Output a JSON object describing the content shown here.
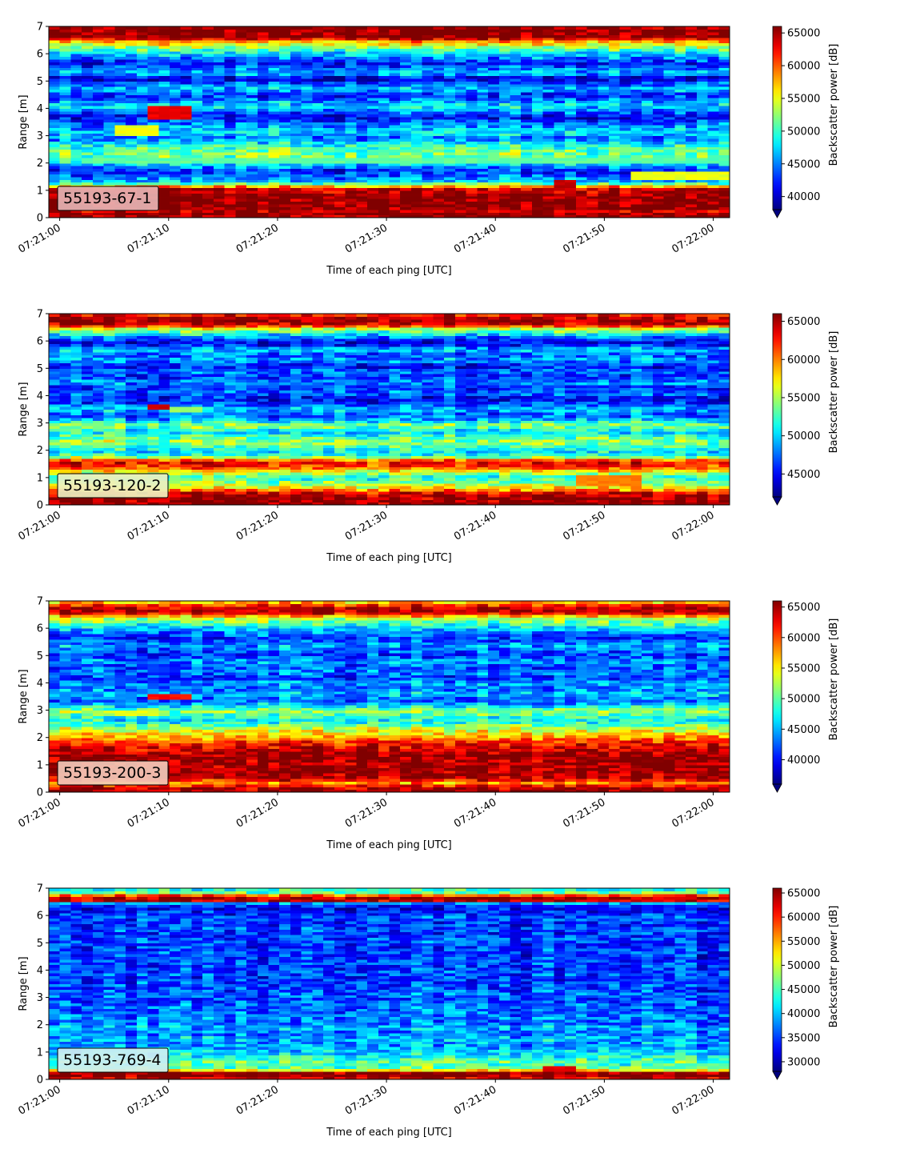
{
  "chart_data": [
    {
      "type": "heatmap",
      "label": "55193-67-1",
      "label_bg": "#e6b3b3",
      "xlabel": "Time of each ping [UTC]",
      "ylabel": "Range [m]",
      "colorbar_label": "Backscatter power [dB]",
      "x_ticks": [
        "07:21:00",
        "07:21:10",
        "07:21:20",
        "07:21:30",
        "07:21:40",
        "07:21:50",
        "07:22:00"
      ],
      "xlim_seconds": [
        -1,
        61.5
      ],
      "y_ticks": [
        0,
        1,
        2,
        3,
        4,
        5,
        6,
        7
      ],
      "ylim": [
        0,
        7
      ],
      "clim": [
        38000,
        66000
      ],
      "colorbar_ticks": [
        40000,
        45000,
        50000,
        55000,
        60000,
        65000
      ],
      "colorbar_extend": "min",
      "colormap": "jet",
      "range_profile": [
        [
          0.0,
          66000
        ],
        [
          0.2,
          66000
        ],
        [
          0.25,
          64000
        ],
        [
          0.4,
          66000
        ],
        [
          0.8,
          66000
        ],
        [
          1.05,
          64000
        ],
        [
          1.15,
          58000
        ],
        [
          1.3,
          47000
        ],
        [
          1.5,
          45000
        ],
        [
          1.7,
          42000
        ],
        [
          1.9,
          46000
        ],
        [
          2.1,
          50000
        ],
        [
          2.3,
          52000
        ],
        [
          2.5,
          51000
        ],
        [
          2.7,
          49000
        ],
        [
          2.9,
          44000
        ],
        [
          3.1,
          48000
        ],
        [
          3.3,
          46000
        ],
        [
          3.5,
          44000
        ],
        [
          3.7,
          41000
        ],
        [
          3.9,
          45000
        ],
        [
          4.1,
          48000
        ],
        [
          4.3,
          45000
        ],
        [
          4.5,
          42000
        ],
        [
          4.7,
          47000
        ],
        [
          4.9,
          44000
        ],
        [
          5.1,
          40000
        ],
        [
          5.3,
          47000
        ],
        [
          5.5,
          44000
        ],
        [
          5.7,
          42000
        ],
        [
          5.9,
          46000
        ],
        [
          6.1,
          49000
        ],
        [
          6.25,
          53000
        ],
        [
          6.45,
          58000
        ],
        [
          6.55,
          63000
        ],
        [
          6.65,
          66000
        ],
        [
          7.0,
          66000
        ]
      ],
      "features": [
        {
          "t0": 8.5,
          "t1": 12.5,
          "r0": 3.65,
          "r1": 4.1,
          "v": 63000
        },
        {
          "t0": 5.5,
          "t1": 9,
          "r0": 3.0,
          "r1": 3.35,
          "v": 55000
        },
        {
          "t0": 45.5,
          "t1": 47.5,
          "r0": 1.0,
          "r1": 1.45,
          "v": 64000
        },
        {
          "t0": 52,
          "t1": 61.5,
          "r0": 1.4,
          "r1": 1.7,
          "v": 55000
        },
        {
          "t0": 2,
          "t1": 61.5,
          "r0": 2.0,
          "r1": 2.2,
          "v": 51000
        }
      ]
    },
    {
      "type": "heatmap",
      "label": "55193-120-2",
      "label_bg": "#eef0c0",
      "xlabel": "Time of each ping [UTC]",
      "ylabel": "Range [m]",
      "colorbar_label": "Backscatter power [dB]",
      "x_ticks": [
        "07:21:00",
        "07:21:10",
        "07:21:20",
        "07:21:30",
        "07:21:40",
        "07:21:50",
        "07:22:00"
      ],
      "xlim_seconds": [
        -1,
        61.5
      ],
      "y_ticks": [
        0,
        1,
        2,
        3,
        4,
        5,
        6,
        7
      ],
      "ylim": [
        0,
        7
      ],
      "clim": [
        42000,
        66000
      ],
      "colorbar_ticks": [
        45000,
        50000,
        55000,
        60000,
        65000
      ],
      "colorbar_extend": "min",
      "colormap": "jet",
      "range_profile": [
        [
          0.0,
          66000
        ],
        [
          0.15,
          66000
        ],
        [
          0.45,
          64000
        ],
        [
          0.6,
          58000
        ],
        [
          0.8,
          55000
        ],
        [
          1.0,
          52000
        ],
        [
          1.2,
          56000
        ],
        [
          1.4,
          62000
        ],
        [
          1.6,
          63000
        ],
        [
          1.75,
          55000
        ],
        [
          1.9,
          50000
        ],
        [
          2.1,
          52000
        ],
        [
          2.3,
          55000
        ],
        [
          2.5,
          53000
        ],
        [
          2.7,
          50000
        ],
        [
          2.9,
          55000
        ],
        [
          3.1,
          50000
        ],
        [
          3.3,
          47000
        ],
        [
          3.5,
          50000
        ],
        [
          3.7,
          47000
        ],
        [
          3.9,
          45000
        ],
        [
          4.1,
          48000
        ],
        [
          4.3,
          46000
        ],
        [
          4.5,
          49000
        ],
        [
          4.7,
          46000
        ],
        [
          4.9,
          48000
        ],
        [
          5.1,
          45000
        ],
        [
          5.3,
          49000
        ],
        [
          5.5,
          47000
        ],
        [
          5.7,
          50000
        ],
        [
          5.9,
          44000
        ],
        [
          6.1,
          47000
        ],
        [
          6.3,
          52000
        ],
        [
          6.45,
          56000
        ],
        [
          6.6,
          64000
        ],
        [
          6.8,
          66000
        ],
        [
          7.0,
          62000
        ]
      ],
      "features": [
        {
          "t0": 8.5,
          "t1": 10.5,
          "r0": 3.5,
          "r1": 3.7,
          "v": 64000
        },
        {
          "t0": 10,
          "t1": 13,
          "r0": 3.45,
          "r1": 3.6,
          "v": 55000
        },
        {
          "t0": 47,
          "t1": 53,
          "r0": 0.7,
          "r1": 1.1,
          "v": 60000
        }
      ]
    },
    {
      "type": "heatmap",
      "label": "55193-200-3",
      "label_bg": "#f2c9b8",
      "xlabel": "Time of each ping [UTC]",
      "ylabel": "Range [m]",
      "colorbar_label": "Backscatter power [dB]",
      "x_ticks": [
        "07:21:00",
        "07:21:10",
        "07:21:20",
        "07:21:30",
        "07:21:40",
        "07:21:50",
        "07:22:00"
      ],
      "xlim_seconds": [
        -1,
        61.5
      ],
      "y_ticks": [
        0,
        1,
        2,
        3,
        4,
        5,
        6,
        7
      ],
      "ylim": [
        0,
        7
      ],
      "clim": [
        36000,
        66000
      ],
      "colorbar_ticks": [
        40000,
        45000,
        50000,
        55000,
        60000,
        65000
      ],
      "colorbar_extend": "min",
      "colormap": "jet",
      "range_profile": [
        [
          0.0,
          66000
        ],
        [
          0.2,
          64000
        ],
        [
          0.35,
          58000
        ],
        [
          0.5,
          64000
        ],
        [
          0.8,
          66000
        ],
        [
          1.0,
          65000
        ],
        [
          1.3,
          66000
        ],
        [
          1.6,
          64000
        ],
        [
          1.8,
          62000
        ],
        [
          2.0,
          58000
        ],
        [
          2.2,
          55000
        ],
        [
          2.4,
          52000
        ],
        [
          2.6,
          47000
        ],
        [
          2.8,
          49000
        ],
        [
          3.0,
          52000
        ],
        [
          3.2,
          46000
        ],
        [
          3.4,
          42000
        ],
        [
          3.6,
          46000
        ],
        [
          3.8,
          43000
        ],
        [
          4.0,
          45000
        ],
        [
          4.2,
          41000
        ],
        [
          4.4,
          44000
        ],
        [
          4.6,
          42000
        ],
        [
          4.8,
          45000
        ],
        [
          5.0,
          41000
        ],
        [
          5.2,
          43000
        ],
        [
          5.4,
          45000
        ],
        [
          5.6,
          41000
        ],
        [
          5.8,
          43000
        ],
        [
          6.0,
          46000
        ],
        [
          6.2,
          50000
        ],
        [
          6.4,
          54000
        ],
        [
          6.6,
          66000
        ],
        [
          6.8,
          64000
        ],
        [
          6.9,
          58000
        ],
        [
          7.0,
          56000
        ]
      ],
      "features": [
        {
          "t0": 8.5,
          "t1": 12.5,
          "r0": 3.45,
          "r1": 3.65,
          "v": 62000
        },
        {
          "t0": 5.5,
          "t1": 9.5,
          "r0": 2.85,
          "r1": 3.05,
          "v": 54000
        }
      ]
    },
    {
      "type": "heatmap",
      "label": "55193-769-4",
      "label_bg": "#cfeef2",
      "xlabel": "Time of each ping [UTC]",
      "ylabel": "Range [m]",
      "colorbar_label": "Backscatter power [dB]",
      "x_ticks": [
        "07:21:00",
        "07:21:10",
        "07:21:20",
        "07:21:30",
        "07:21:40",
        "07:21:50",
        "07:22:00"
      ],
      "xlim_seconds": [
        -1,
        61.5
      ],
      "y_ticks": [
        0,
        1,
        2,
        3,
        4,
        5,
        6,
        7
      ],
      "ylim": [
        0,
        7
      ],
      "clim": [
        28000,
        66000
      ],
      "colorbar_ticks": [
        30000,
        35000,
        40000,
        45000,
        50000,
        55000,
        60000,
        65000
      ],
      "colorbar_extend": "min",
      "colormap": "jet",
      "range_profile": [
        [
          0.0,
          60000
        ],
        [
          0.12,
          66000
        ],
        [
          0.25,
          66000
        ],
        [
          0.35,
          52000
        ],
        [
          0.5,
          44000
        ],
        [
          0.7,
          46000
        ],
        [
          0.9,
          42000
        ],
        [
          1.1,
          40000
        ],
        [
          1.3,
          38000
        ],
        [
          1.5,
          40000
        ],
        [
          1.7,
          37000
        ],
        [
          1.9,
          40000
        ],
        [
          2.1,
          36000
        ],
        [
          2.3,
          38000
        ],
        [
          2.5,
          36000
        ],
        [
          2.7,
          37000
        ],
        [
          2.9,
          35000
        ],
        [
          3.1,
          37000
        ],
        [
          3.3,
          35000
        ],
        [
          3.5,
          36000
        ],
        [
          3.7,
          34000
        ],
        [
          3.9,
          36000
        ],
        [
          4.1,
          34000
        ],
        [
          4.3,
          36000
        ],
        [
          4.5,
          34000
        ],
        [
          4.7,
          36000
        ],
        [
          4.9,
          34000
        ],
        [
          5.1,
          36000
        ],
        [
          5.3,
          34000
        ],
        [
          5.5,
          36000
        ],
        [
          5.7,
          34000
        ],
        [
          5.9,
          36000
        ],
        [
          6.1,
          34000
        ],
        [
          6.3,
          32000
        ],
        [
          6.45,
          38000
        ],
        [
          6.55,
          63000
        ],
        [
          6.7,
          66000
        ],
        [
          6.8,
          50000
        ],
        [
          6.9,
          42000
        ],
        [
          7.0,
          45000
        ]
      ],
      "features": [
        {
          "t0": 44,
          "t1": 47,
          "r0": 0.3,
          "r1": 0.45,
          "v": 62000
        }
      ]
    }
  ]
}
